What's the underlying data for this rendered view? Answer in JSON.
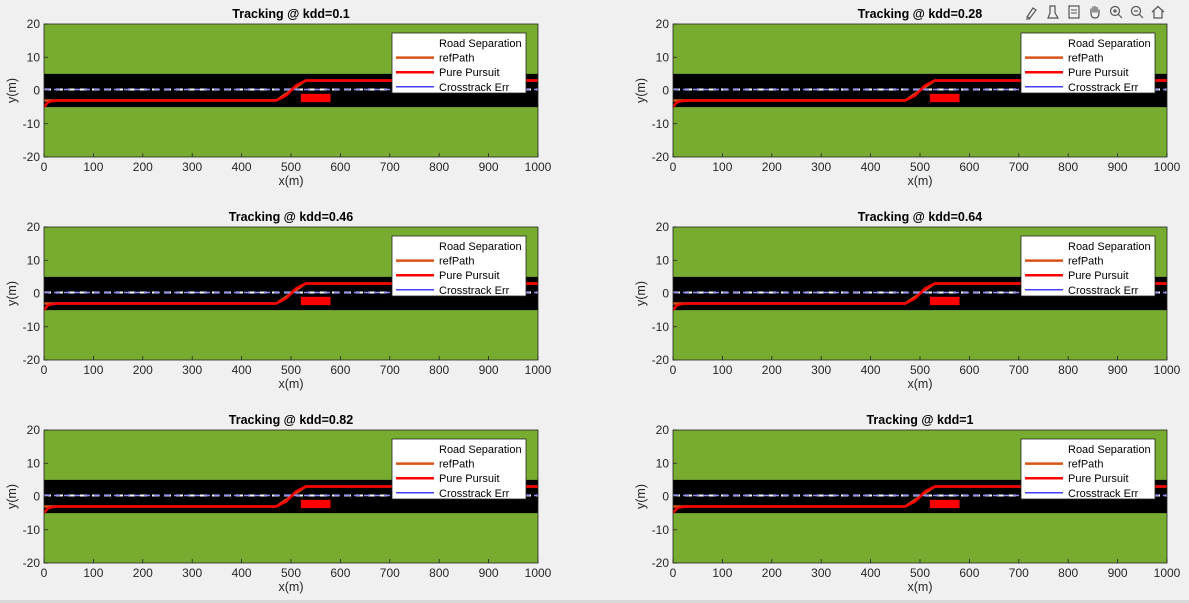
{
  "toolbar": {
    "icons": [
      "brush-icon",
      "datatip-icon",
      "rotate-icon",
      "pan-icon",
      "zoom-in-icon",
      "zoom-out-icon",
      "home-icon"
    ]
  },
  "colors": {
    "figure_bg": "#f0f0f0",
    "grass": "#77ac30",
    "road": "#000000",
    "lane_marking": "#ffffff",
    "ref_path": "#d95319",
    "pure_pursuit": "#ff0000",
    "crosstrack": "#0000ff",
    "crosstrack_dashed": "#8f8fff",
    "obstacle": "#ff0000"
  },
  "chart_data": [
    {
      "type": "line",
      "title": "Tracking @ kdd=0.1",
      "xlabel": "x(m)",
      "ylabel": "y(m)",
      "xlim": [
        0,
        1000
      ],
      "ylim": [
        -20,
        20
      ],
      "xticks": [
        0,
        100,
        200,
        300,
        400,
        500,
        600,
        700,
        800,
        900,
        1000
      ],
      "yticks": [
        -20,
        -10,
        0,
        10,
        20
      ],
      "legend": [
        "Road Separation",
        "refPath",
        "Pure Pursuit",
        "Crosstrack Err"
      ],
      "legend_position": "top-right",
      "road": {
        "y_min": -5,
        "y_max": 5,
        "lane_marking_y": 0
      },
      "obstacle": {
        "x": [
          520,
          580
        ],
        "y": [
          -3.5,
          -1
        ]
      },
      "series": [
        {
          "name": "refPath",
          "x": [
            0,
            470,
            500,
            530,
            1000
          ],
          "y": [
            -3,
            -3,
            0,
            3,
            3
          ]
        },
        {
          "name": "Pure Pursuit",
          "x": [
            0,
            5,
            10,
            25,
            470,
            490,
            510,
            530,
            1000
          ],
          "y": [
            -5,
            -4,
            -3.4,
            -3,
            -3,
            -1.5,
            1.5,
            3,
            3
          ]
        },
        {
          "name": "Crosstrack Err",
          "x": [
            0,
            1000
          ],
          "y": [
            0.3,
            0.3
          ]
        }
      ]
    },
    {
      "type": "line",
      "title": "Tracking @ kdd=0.28",
      "xlabel": "x(m)",
      "ylabel": "y(m)",
      "xlim": [
        0,
        1000
      ],
      "ylim": [
        -20,
        20
      ],
      "xticks": [
        0,
        100,
        200,
        300,
        400,
        500,
        600,
        700,
        800,
        900,
        1000
      ],
      "yticks": [
        -20,
        -10,
        0,
        10,
        20
      ],
      "legend": [
        "Road Separation",
        "refPath",
        "Pure Pursuit",
        "Crosstrack Err"
      ],
      "legend_position": "top-right",
      "road": {
        "y_min": -5,
        "y_max": 5,
        "lane_marking_y": 0
      },
      "obstacle": {
        "x": [
          520,
          580
        ],
        "y": [
          -3.5,
          -1
        ]
      },
      "series": [
        {
          "name": "refPath",
          "x": [
            0,
            470,
            500,
            530,
            1000
          ],
          "y": [
            -3,
            -3,
            0,
            3,
            3
          ]
        },
        {
          "name": "Pure Pursuit",
          "x": [
            0,
            5,
            10,
            25,
            470,
            490,
            510,
            530,
            1000
          ],
          "y": [
            -5,
            -4,
            -3.4,
            -3,
            -3,
            -1.5,
            1.5,
            3,
            3
          ]
        },
        {
          "name": "Crosstrack Err",
          "x": [
            0,
            1000
          ],
          "y": [
            0.3,
            0.3
          ]
        }
      ]
    },
    {
      "type": "line",
      "title": "Tracking @ kdd=0.46",
      "xlabel": "x(m)",
      "ylabel": "y(m)",
      "xlim": [
        0,
        1000
      ],
      "ylim": [
        -20,
        20
      ],
      "xticks": [
        0,
        100,
        200,
        300,
        400,
        500,
        600,
        700,
        800,
        900,
        1000
      ],
      "yticks": [
        -20,
        -10,
        0,
        10,
        20
      ],
      "legend": [
        "Road Separation",
        "refPath",
        "Pure Pursuit",
        "Crosstrack Err"
      ],
      "legend_position": "top-right",
      "road": {
        "y_min": -5,
        "y_max": 5,
        "lane_marking_y": 0
      },
      "obstacle": {
        "x": [
          520,
          580
        ],
        "y": [
          -3.5,
          -1
        ]
      },
      "series": [
        {
          "name": "refPath",
          "x": [
            0,
            470,
            500,
            530,
            1000
          ],
          "y": [
            -3,
            -3,
            0,
            3,
            3
          ]
        },
        {
          "name": "Pure Pursuit",
          "x": [
            0,
            5,
            10,
            25,
            470,
            490,
            510,
            530,
            1000
          ],
          "y": [
            -5,
            -4,
            -3.4,
            -3,
            -3,
            -1.5,
            1.5,
            3,
            3
          ]
        },
        {
          "name": "Crosstrack Err",
          "x": [
            0,
            1000
          ],
          "y": [
            0.3,
            0.3
          ]
        }
      ]
    },
    {
      "type": "line",
      "title": "Tracking @ kdd=0.64",
      "xlabel": "x(m)",
      "ylabel": "y(m)",
      "xlim": [
        0,
        1000
      ],
      "ylim": [
        -20,
        20
      ],
      "xticks": [
        0,
        100,
        200,
        300,
        400,
        500,
        600,
        700,
        800,
        900,
        1000
      ],
      "yticks": [
        -20,
        -10,
        0,
        10,
        20
      ],
      "legend": [
        "Road Separation",
        "refPath",
        "Pure Pursuit",
        "Crosstrack Err"
      ],
      "legend_position": "top-right",
      "road": {
        "y_min": -5,
        "y_max": 5,
        "lane_marking_y": 0
      },
      "obstacle": {
        "x": [
          520,
          580
        ],
        "y": [
          -3.5,
          -1
        ]
      },
      "series": [
        {
          "name": "refPath",
          "x": [
            0,
            470,
            500,
            530,
            1000
          ],
          "y": [
            -3,
            -3,
            0,
            3,
            3
          ]
        },
        {
          "name": "Pure Pursuit",
          "x": [
            0,
            5,
            10,
            25,
            470,
            490,
            510,
            530,
            1000
          ],
          "y": [
            -5,
            -4,
            -3.4,
            -3,
            -3,
            -1.5,
            1.5,
            3,
            3
          ]
        },
        {
          "name": "Crosstrack Err",
          "x": [
            0,
            1000
          ],
          "y": [
            0.3,
            0.3
          ]
        }
      ]
    },
    {
      "type": "line",
      "title": "Tracking @ kdd=0.82",
      "xlabel": "x(m)",
      "ylabel": "y(m)",
      "xlim": [
        0,
        1000
      ],
      "ylim": [
        -20,
        20
      ],
      "xticks": [
        0,
        100,
        200,
        300,
        400,
        500,
        600,
        700,
        800,
        900,
        1000
      ],
      "yticks": [
        -20,
        -10,
        0,
        10,
        20
      ],
      "legend": [
        "Road Separation",
        "refPath",
        "Pure Pursuit",
        "Crosstrack Err"
      ],
      "legend_position": "top-right",
      "road": {
        "y_min": -5,
        "y_max": 5,
        "lane_marking_y": 0
      },
      "obstacle": {
        "x": [
          520,
          580
        ],
        "y": [
          -3.5,
          -1
        ]
      },
      "series": [
        {
          "name": "refPath",
          "x": [
            0,
            470,
            500,
            530,
            1000
          ],
          "y": [
            -3,
            -3,
            0,
            3,
            3
          ]
        },
        {
          "name": "Pure Pursuit",
          "x": [
            0,
            5,
            10,
            25,
            470,
            490,
            510,
            530,
            1000
          ],
          "y": [
            -5,
            -4,
            -3.4,
            -3,
            -3,
            -1.5,
            1.5,
            3,
            3
          ]
        },
        {
          "name": "Crosstrack Err",
          "x": [
            0,
            1000
          ],
          "y": [
            0.3,
            0.3
          ]
        }
      ]
    },
    {
      "type": "line",
      "title": "Tracking @ kdd=1",
      "xlabel": "x(m)",
      "ylabel": "y(m)",
      "xlim": [
        0,
        1000
      ],
      "ylim": [
        -20,
        20
      ],
      "xticks": [
        0,
        100,
        200,
        300,
        400,
        500,
        600,
        700,
        800,
        900,
        1000
      ],
      "yticks": [
        -20,
        -10,
        0,
        10,
        20
      ],
      "legend": [
        "Road Separation",
        "refPath",
        "Pure Pursuit",
        "Crosstrack Err"
      ],
      "legend_position": "top-right",
      "road": {
        "y_min": -5,
        "y_max": 5,
        "lane_marking_y": 0
      },
      "obstacle": {
        "x": [
          520,
          580
        ],
        "y": [
          -3.5,
          -1
        ]
      },
      "series": [
        {
          "name": "refPath",
          "x": [
            0,
            470,
            500,
            530,
            1000
          ],
          "y": [
            -3,
            -3,
            0,
            3,
            3
          ]
        },
        {
          "name": "Pure Pursuit",
          "x": [
            0,
            5,
            10,
            25,
            470,
            490,
            510,
            530,
            1000
          ],
          "y": [
            -5,
            -4,
            -3.4,
            -3,
            -3,
            -1.5,
            1.5,
            3,
            3
          ]
        },
        {
          "name": "Crosstrack Err",
          "x": [
            0,
            1000
          ],
          "y": [
            0.3,
            0.3
          ]
        }
      ]
    }
  ]
}
